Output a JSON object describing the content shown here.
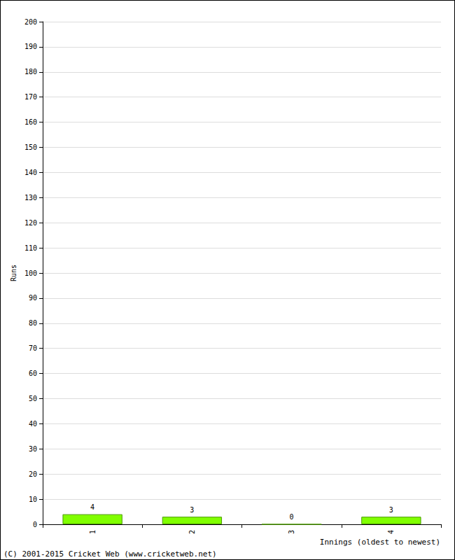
{
  "chart_data": {
    "type": "bar",
    "categories": [
      "1",
      "2",
      "3",
      "4"
    ],
    "values": [
      4,
      3,
      0,
      3
    ],
    "color": "#80ff00",
    "ylim": [
      0,
      200
    ],
    "yticks": [
      0,
      10,
      20,
      30,
      40,
      50,
      60,
      70,
      80,
      90,
      100,
      110,
      120,
      130,
      140,
      150,
      160,
      170,
      180,
      190,
      200
    ],
    "grid": true,
    "data_labels": true,
    "x_label": "Innings (oldest to newest)",
    "y_label": "Runs",
    "annotations": [
      "(C) 2001-2015 Cricket Web (www.cricketweb.net)"
    ]
  }
}
